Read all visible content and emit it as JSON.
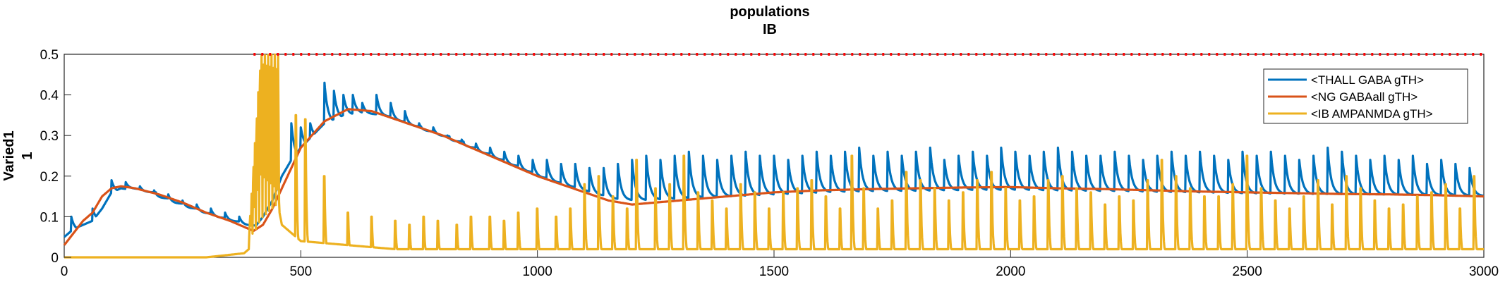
{
  "chart_data": {
    "type": "line",
    "title": "populations",
    "subtitle": "IB",
    "xlabel": "",
    "ylabel": "Varied1",
    "ylabel2": "1",
    "xlim": [
      0,
      3000
    ],
    "ylim": [
      0,
      0.5
    ],
    "xticks": [
      0,
      500,
      1000,
      1500,
      2000,
      2500,
      3000
    ],
    "xtick_labels": [
      "0",
      "500",
      "1000",
      "1500",
      "2000",
      "2500",
      "3000"
    ],
    "yticks": [
      0,
      0.1,
      0.2,
      0.3,
      0.4,
      0.5
    ],
    "ytick_labels": [
      "0",
      "0.1",
      "0.2",
      "0.3",
      "0.4",
      "0.5"
    ],
    "grid": false,
    "legend_position": "top-right",
    "series": [
      {
        "name": "<THALL GABA gTH>",
        "color": "#0072BD",
        "description": "baseline with decaying spikes",
        "x": [
          0,
          20,
          40,
          60,
          80,
          100,
          120,
          150,
          200,
          250,
          300,
          350,
          380,
          400,
          420,
          440,
          460,
          480,
          500,
          550,
          600,
          650,
          700,
          800,
          900,
          1000,
          1100,
          1150,
          1200,
          1300,
          1400,
          1500,
          1600,
          1700,
          1800,
          1900,
          2000,
          2100,
          2200,
          2300,
          2400,
          2500,
          2600,
          2700,
          2800,
          2900,
          3000
        ],
        "baseline": [
          0.05,
          0.07,
          0.08,
          0.09,
          0.12,
          0.16,
          0.17,
          0.165,
          0.14,
          0.12,
          0.1,
          0.085,
          0.075,
          0.07,
          0.1,
          0.14,
          0.2,
          0.24,
          0.27,
          0.33,
          0.355,
          0.35,
          0.33,
          0.29,
          0.24,
          0.19,
          0.155,
          0.14,
          0.14,
          0.145,
          0.15,
          0.155,
          0.16,
          0.162,
          0.163,
          0.165,
          0.165,
          0.163,
          0.162,
          0.16,
          0.158,
          0.156,
          0.155,
          0.154,
          0.153,
          0.152,
          0.15
        ],
        "spike_x": [
          15,
          60,
          100,
          130,
          160,
          190,
          220,
          250,
          280,
          310,
          340,
          370,
          460,
          480,
          500,
          520,
          550,
          570,
          590,
          610,
          630,
          660,
          690,
          720,
          750,
          780,
          810,
          840,
          870,
          900,
          930,
          960,
          990,
          1020,
          1050,
          1080,
          1110,
          1140,
          1170,
          1200,
          1230,
          1260,
          1290,
          1320,
          1350,
          1380,
          1410,
          1440,
          1470,
          1500,
          1530,
          1560,
          1590,
          1620,
          1650,
          1680,
          1710,
          1740,
          1770,
          1800,
          1830,
          1860,
          1890,
          1920,
          1950,
          1980,
          2010,
          2040,
          2070,
          2100,
          2130,
          2160,
          2190,
          2220,
          2250,
          2280,
          2310,
          2340,
          2370,
          2400,
          2430,
          2460,
          2490,
          2520,
          2550,
          2580,
          2610,
          2640,
          2670,
          2700,
          2730,
          2760,
          2790,
          2820,
          2850,
          2880,
          2910,
          2940,
          2970
        ],
        "spike_peaks": [
          0.1,
          0.12,
          0.19,
          0.185,
          0.175,
          0.165,
          0.155,
          0.14,
          0.13,
          0.12,
          0.11,
          0.1,
          0.2,
          0.33,
          0.32,
          0.33,
          0.43,
          0.41,
          0.4,
          0.4,
          0.38,
          0.4,
          0.38,
          0.36,
          0.33,
          0.32,
          0.3,
          0.29,
          0.28,
          0.27,
          0.26,
          0.25,
          0.24,
          0.24,
          0.23,
          0.23,
          0.22,
          0.22,
          0.23,
          0.24,
          0.25,
          0.24,
          0.25,
          0.26,
          0.25,
          0.24,
          0.25,
          0.26,
          0.25,
          0.25,
          0.24,
          0.25,
          0.26,
          0.25,
          0.26,
          0.27,
          0.25,
          0.26,
          0.25,
          0.26,
          0.27,
          0.24,
          0.25,
          0.26,
          0.25,
          0.27,
          0.26,
          0.25,
          0.26,
          0.27,
          0.26,
          0.25,
          0.25,
          0.26,
          0.25,
          0.24,
          0.25,
          0.26,
          0.25,
          0.26,
          0.25,
          0.24,
          0.26,
          0.25,
          0.26,
          0.25,
          0.24,
          0.25,
          0.27,
          0.26,
          0.25,
          0.24,
          0.25,
          0.24,
          0.25,
          0.23,
          0.24,
          0.23,
          0.22
        ]
      },
      {
        "name": "<NG GABAall gTH>",
        "color": "#D95319",
        "x": [
          0,
          20,
          40,
          60,
          80,
          100,
          120,
          150,
          200,
          250,
          300,
          350,
          400,
          420,
          440,
          460,
          480,
          500,
          550,
          600,
          650,
          700,
          800,
          900,
          1000,
          1100,
          1150,
          1200,
          1250,
          1300,
          1400,
          1500,
          1600,
          1700,
          1800,
          1900,
          2000,
          2100,
          2200,
          2300,
          2400,
          2500,
          2600,
          2700,
          2800,
          2900,
          3000
        ],
        "values": [
          0.03,
          0.06,
          0.09,
          0.11,
          0.15,
          0.17,
          0.175,
          0.17,
          0.155,
          0.135,
          0.11,
          0.09,
          0.065,
          0.08,
          0.12,
          0.17,
          0.22,
          0.27,
          0.335,
          0.365,
          0.36,
          0.34,
          0.3,
          0.25,
          0.2,
          0.16,
          0.14,
          0.13,
          0.135,
          0.14,
          0.15,
          0.16,
          0.165,
          0.168,
          0.17,
          0.172,
          0.173,
          0.17,
          0.168,
          0.165,
          0.162,
          0.16,
          0.158,
          0.156,
          0.155,
          0.153,
          0.15
        ]
      },
      {
        "name": "<IB AMPANMDA gTH>",
        "color": "#EDB120",
        "x": [
          0,
          100,
          200,
          300,
          380,
          400,
          420,
          440,
          460,
          500,
          600,
          700,
          800,
          900,
          1000,
          1100,
          1200,
          1300,
          1400,
          1500,
          1600,
          1700,
          1800,
          1900,
          2000,
          2100,
          2200,
          2300,
          2400,
          2500,
          2600,
          2700,
          2800,
          2900,
          3000
        ],
        "baseline": [
          0,
          0,
          0,
          0,
          0.01,
          0.03,
          0.1,
          0.2,
          0.08,
          0.04,
          0.03,
          0.02,
          0.02,
          0.02,
          0.02,
          0.02,
          0.02,
          0.02,
          0.02,
          0.02,
          0.02,
          0.02,
          0.02,
          0.02,
          0.02,
          0.02,
          0.02,
          0.02,
          0.02,
          0.02,
          0.02,
          0.02,
          0.02,
          0.02,
          0.02
        ],
        "spike_x": [
          490,
          510,
          550,
          600,
          650,
          700,
          730,
          760,
          790,
          830,
          860,
          900,
          930,
          960,
          1000,
          1040,
          1070,
          1100,
          1130,
          1160,
          1190,
          1210,
          1250,
          1280,
          1310,
          1340,
          1370,
          1400,
          1430,
          1460,
          1490,
          1520,
          1550,
          1580,
          1610,
          1640,
          1665,
          1690,
          1720,
          1750,
          1780,
          1810,
          1840,
          1870,
          1900,
          1930,
          1960,
          1990,
          2020,
          2050,
          2080,
          2110,
          2140,
          2170,
          2200,
          2230,
          2260,
          2290,
          2320,
          2350,
          2380,
          2410,
          2440,
          2470,
          2500,
          2530,
          2560,
          2590,
          2620,
          2650,
          2680,
          2710,
          2740,
          2770,
          2800,
          2830,
          2860,
          2890,
          2920,
          2950,
          2980
        ],
        "spike_peaks": [
          0.35,
          0.34,
          0.2,
          0.11,
          0.1,
          0.09,
          0.08,
          0.1,
          0.09,
          0.08,
          0.1,
          0.1,
          0.09,
          0.11,
          0.12,
          0.1,
          0.12,
          0.18,
          0.2,
          0.15,
          0.12,
          0.24,
          0.17,
          0.18,
          0.25,
          0.16,
          0.14,
          0.12,
          0.18,
          0.16,
          0.12,
          0.16,
          0.17,
          0.19,
          0.15,
          0.12,
          0.25,
          0.17,
          0.12,
          0.14,
          0.21,
          0.19,
          0.17,
          0.14,
          0.16,
          0.19,
          0.21,
          0.17,
          0.14,
          0.15,
          0.19,
          0.2,
          0.17,
          0.16,
          0.13,
          0.15,
          0.14,
          0.19,
          0.24,
          0.2,
          0.17,
          0.15,
          0.15,
          0.18,
          0.25,
          0.17,
          0.14,
          0.12,
          0.15,
          0.19,
          0.13,
          0.2,
          0.17,
          0.14,
          0.12,
          0.13,
          0.15,
          0.16,
          0.18,
          0.12,
          0.2
        ]
      },
      {
        "name": "",
        "color": "#FF0000",
        "style": "dotted",
        "x": [
          400,
          3000
        ],
        "values": [
          0.5,
          0.5
        ]
      }
    ]
  }
}
